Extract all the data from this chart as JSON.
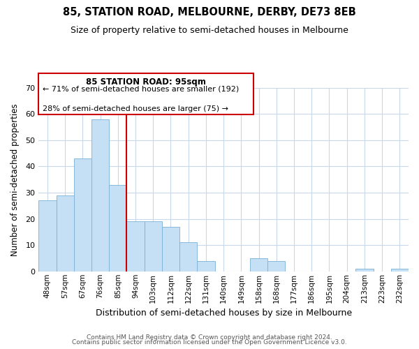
{
  "title1": "85, STATION ROAD, MELBOURNE, DERBY, DE73 8EB",
  "title2": "Size of property relative to semi-detached houses in Melbourne",
  "xlabel": "Distribution of semi-detached houses by size in Melbourne",
  "ylabel": "Number of semi-detached properties",
  "footer1": "Contains HM Land Registry data © Crown copyright and database right 2024.",
  "footer2": "Contains public sector information licensed under the Open Government Licence v3.0.",
  "annotation_title": "85 STATION ROAD: 95sqm",
  "annotation_line1": "← 71% of semi-detached houses are smaller (192)",
  "annotation_line2": "28% of semi-detached houses are larger (75) →",
  "bar_color": "#c5dff5",
  "bar_edge_color": "#7ab0d4",
  "marker_line_color": "#cc0000",
  "annotation_box_color": "#cc0000",
  "categories": [
    "48sqm",
    "57sqm",
    "67sqm",
    "76sqm",
    "85sqm",
    "94sqm",
    "103sqm",
    "112sqm",
    "122sqm",
    "131sqm",
    "140sqm",
    "149sqm",
    "158sqm",
    "168sqm",
    "177sqm",
    "186sqm",
    "195sqm",
    "204sqm",
    "213sqm",
    "223sqm",
    "232sqm"
  ],
  "values": [
    27,
    29,
    43,
    58,
    33,
    19,
    19,
    17,
    11,
    4,
    0,
    0,
    5,
    4,
    0,
    0,
    0,
    0,
    1,
    0,
    1
  ],
  "marker_after_index": 4,
  "ylim": [
    0,
    70
  ],
  "yticks": [
    0,
    10,
    20,
    30,
    40,
    50,
    60,
    70
  ],
  "background_color": "#ffffff",
  "grid_color": "#c8d8ea"
}
